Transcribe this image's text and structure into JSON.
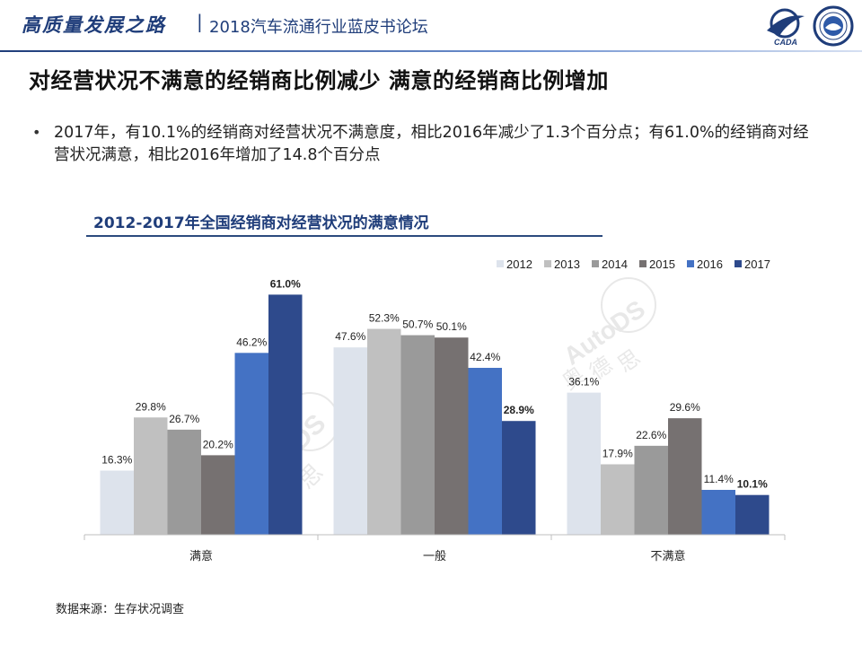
{
  "header": {
    "slogan": "高质量发展之路",
    "separator": "|",
    "subtitle": "2018汽车流通行业蓝皮书论坛",
    "logo_text": "CADA"
  },
  "slide": {
    "title": "对经营状况不满意的经销商比例减少 满意的经销商比例增加",
    "bullet_marker": "•",
    "bullet": "2017年，有10.1%的经销商对经营状况不满意度，相比2016年减少了1.3个百分点；有61.0%的经销商对经营状况满意，相比2016年增加了14.8个百分点",
    "source": "数据来源：生存状况调查"
  },
  "watermark": {
    "brand": "AutoDS",
    "cn": [
      "奥",
      "德",
      "思"
    ]
  },
  "colors": {
    "brand": "#1f3d7a",
    "s2012": "#dde3ec",
    "s2013": "#c0c0c0",
    "s2014": "#9a9a9a",
    "s2015": "#767171",
    "s2016": "#4472c4",
    "s2017": "#2e4a8c"
  },
  "chart_data": {
    "type": "bar",
    "title": "2012-2017年全国经销商对经营状况的满意情况",
    "categories": [
      "满意",
      "一般",
      "不满意"
    ],
    "series": [
      {
        "name": "2012",
        "values": [
          16.3,
          47.6,
          36.1
        ],
        "labels": [
          "16.3%",
          "47.6%",
          "36.1%"
        ],
        "color": "#dde3ec"
      },
      {
        "name": "2013",
        "values": [
          29.8,
          52.3,
          17.9
        ],
        "labels": [
          "29.8%",
          "52.3%",
          "17.9%"
        ],
        "color": "#c0c0c0"
      },
      {
        "name": "2014",
        "values": [
          26.7,
          50.7,
          22.6
        ],
        "labels": [
          "26.7%",
          "50.7%",
          "22.6%"
        ],
        "color": "#9a9a9a"
      },
      {
        "name": "2015",
        "values": [
          20.2,
          50.1,
          29.6
        ],
        "labels": [
          "20.2%",
          "50.1%",
          "29.6%"
        ],
        "color": "#767171"
      },
      {
        "name": "2016",
        "values": [
          46.2,
          42.4,
          11.4
        ],
        "labels": [
          "46.2%",
          "42.4%",
          "11.4%"
        ],
        "color": "#4472c4"
      },
      {
        "name": "2017",
        "values": [
          61.0,
          28.9,
          10.1
        ],
        "labels": [
          "61.0%",
          "28.9%",
          "10.1%"
        ],
        "color": "#2e4a8c",
        "bold_labels": true
      }
    ],
    "ylim": [
      0,
      62
    ],
    "legend": "top-right",
    "grid": false
  }
}
